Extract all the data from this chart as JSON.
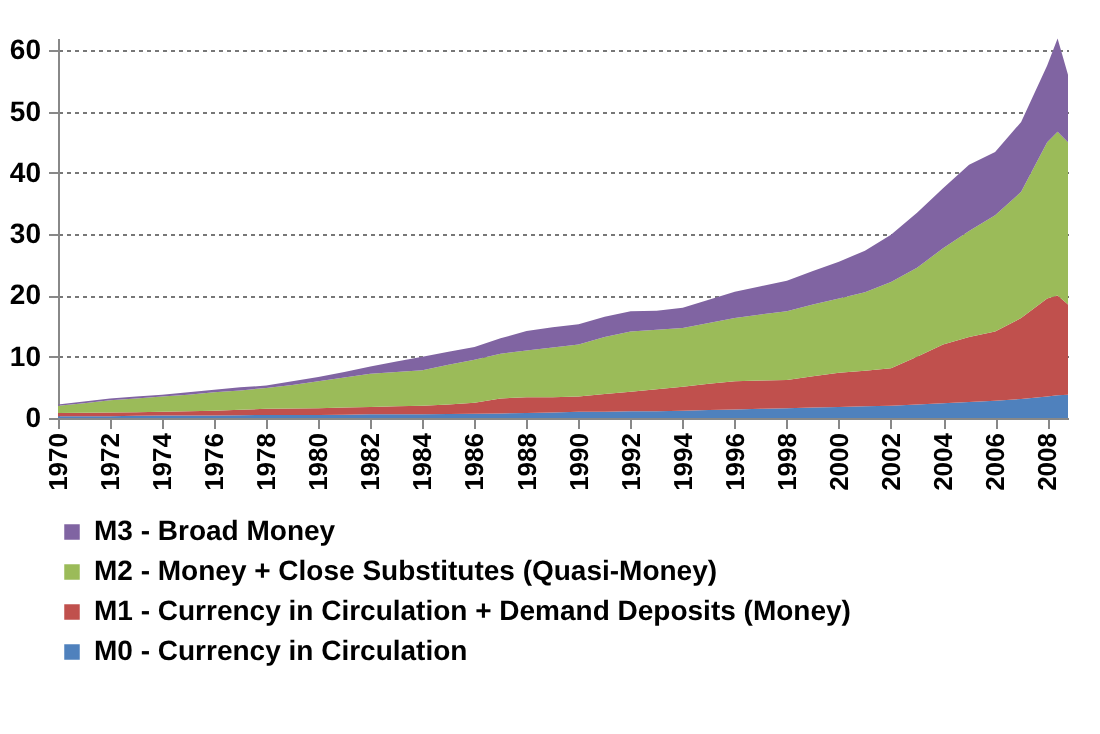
{
  "chart_data": {
    "type": "area",
    "stacked": true,
    "legend": "bottom",
    "grid": "y",
    "x": [
      1970,
      1971,
      1972,
      1973,
      1974,
      1975,
      1976,
      1977,
      1978,
      1979,
      1980,
      1981,
      1982,
      1983,
      1984,
      1985,
      1986,
      1987,
      1988,
      1989,
      1990,
      1991,
      1992,
      1993,
      1994,
      1995,
      1996,
      1997,
      1998,
      1999,
      2000,
      2001,
      2002,
      2003,
      2004,
      2005,
      2006,
      2007,
      2008,
      2008.4,
      2008.8
    ],
    "xlim": [
      1970,
      2008.8
    ],
    "xticks": [
      1970,
      1972,
      1974,
      1976,
      1978,
      1980,
      1982,
      1984,
      1986,
      1988,
      1990,
      1992,
      1994,
      1996,
      1998,
      2000,
      2002,
      2004,
      2006,
      2008
    ],
    "ylim": [
      0,
      62
    ],
    "yticks": [
      0,
      10,
      20,
      30,
      40,
      50,
      60
    ],
    "series": [
      {
        "name": "M0 - Currency in Circulation",
        "color": "#4f81bd",
        "values": [
          0.3,
          0.3,
          0.3,
          0.35,
          0.4,
          0.4,
          0.4,
          0.45,
          0.5,
          0.5,
          0.5,
          0.55,
          0.6,
          0.6,
          0.6,
          0.65,
          0.7,
          0.75,
          0.8,
          0.9,
          1.0,
          1.0,
          1.1,
          1.1,
          1.2,
          1.3,
          1.4,
          1.5,
          1.6,
          1.7,
          1.8,
          1.9,
          2.0,
          2.2,
          2.4,
          2.6,
          2.8,
          3.1,
          3.5,
          3.7,
          3.8
        ]
      },
      {
        "name": "M1 - Currency in Circulation + Demand Deposits (Money)",
        "color": "#c0504d",
        "values": [
          0.5,
          0.55,
          0.6,
          0.6,
          0.6,
          0.7,
          0.8,
          0.9,
          1.0,
          1.05,
          1.1,
          1.15,
          1.2,
          1.3,
          1.4,
          1.55,
          1.8,
          2.45,
          2.6,
          2.5,
          2.5,
          2.9,
          3.2,
          3.6,
          3.9,
          4.3,
          4.6,
          4.6,
          4.6,
          5.1,
          5.6,
          5.8,
          6.1,
          7.8,
          9.6,
          10.6,
          11.3,
          13.2,
          16.0,
          16.3,
          14.7
        ]
      },
      {
        "name": "M2 - Money + Close Substitutes (Quasi-Money)",
        "color": "#9bbb59",
        "values": [
          1.2,
          1.55,
          2.0,
          2.25,
          2.5,
          2.7,
          3.0,
          3.15,
          3.4,
          3.85,
          4.4,
          4.9,
          5.4,
          5.6,
          5.8,
          6.5,
          7.0,
          7.3,
          7.6,
          8.1,
          8.5,
          9.3,
          9.8,
          9.7,
          9.6,
          9.9,
          10.3,
          10.8,
          11.2,
          11.7,
          12.1,
          12.8,
          14.1,
          14.5,
          15.7,
          17.3,
          19.0,
          20.6,
          25.5,
          26.7,
          26.5
        ]
      },
      {
        "name": "M3 - Broad Money",
        "color": "#8064a2",
        "values": [
          0.2,
          0.3,
          0.3,
          0.3,
          0.3,
          0.4,
          0.4,
          0.5,
          0.4,
          0.6,
          0.7,
          0.9,
          1.2,
          1.7,
          2.2,
          2.1,
          2.1,
          2.5,
          3.2,
          3.3,
          3.3,
          3.3,
          3.3,
          3.1,
          3.3,
          3.8,
          4.3,
          4.6,
          5.0,
          5.5,
          6.0,
          6.8,
          7.7,
          9.0,
          9.8,
          10.8,
          10.3,
          11.4,
          12.5,
          15.2,
          11.0
        ]
      }
    ]
  }
}
